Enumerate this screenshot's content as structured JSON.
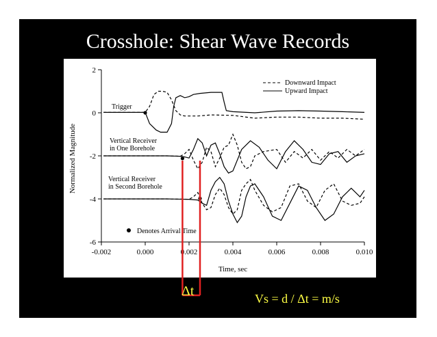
{
  "slide": {
    "title": "Crosshole: Shear Wave Records",
    "delta_t_label": "Δt",
    "formula": "Vs = d / Δt = m/s",
    "accent": "#ffff44",
    "marker_color": "#e02020"
  },
  "chart_data": {
    "type": "line",
    "xlabel": "Time, sec",
    "ylabel": "Normalized Magnitude",
    "xlim": [
      -0.002,
      0.01
    ],
    "ylim": [
      -6,
      2
    ],
    "x_ticks": [
      "-0.002",
      "0.000",
      "0.002",
      "0.004",
      "0.006",
      "0.008",
      "0.010"
    ],
    "y_ticks": [
      "2",
      "0",
      "-2",
      "-4",
      "-6"
    ],
    "legend": {
      "position": "top-right",
      "entries": [
        "Downward Impact",
        "Upward Impact"
      ]
    },
    "annotations": {
      "trigger": "Trigger",
      "receiver1": [
        "Vertical Receiver",
        "in One Borehole"
      ],
      "receiver2": [
        "Vertical Receiver",
        "in Second Borehole"
      ],
      "arrival_note": "Denotes Arrival Time"
    },
    "arrival_points": [
      {
        "x": 0.0,
        "y": 0.0
      },
      {
        "x": 0.0017,
        "y": -2.12
      },
      {
        "x": 0.0025,
        "y": -3.98
      }
    ],
    "delta_t_markers": [
      0.0017,
      0.0025
    ],
    "series": [
      {
        "name": "Downward Impact",
        "style": "dashed",
        "group": "trigger",
        "x": [
          -0.0019,
          0,
          0.0002,
          0.0004,
          0.0006,
          0.0008,
          0.001,
          0.0012,
          0.0014,
          0.0016,
          0.0018,
          0.002,
          0.0024,
          0.003,
          0.004,
          0.005,
          0.006,
          0.007,
          0.008,
          0.009,
          0.01
        ],
        "y": [
          0.02,
          0.02,
          0.3,
          0.85,
          1.0,
          1.0,
          0.95,
          0.6,
          0.1,
          -0.1,
          -0.15,
          -0.15,
          -0.15,
          -0.1,
          -0.12,
          -0.25,
          -0.2,
          -0.2,
          -0.25,
          -0.25,
          -0.3
        ]
      },
      {
        "name": "Upward Impact",
        "style": "solid",
        "group": "trigger",
        "x": [
          -0.0019,
          0,
          0.0002,
          0.0005,
          0.0007,
          0.001,
          0.0012,
          0.0013,
          0.0014,
          0.0016,
          0.0018,
          0.002,
          0.0022,
          0.0025,
          0.003,
          0.0035,
          0.0036,
          0.0037,
          0.004,
          0.005,
          0.006,
          0.007,
          0.008,
          0.009,
          0.01
        ],
        "y": [
          0.02,
          0.02,
          -0.5,
          -0.8,
          -0.9,
          -0.9,
          -0.5,
          0.3,
          0.7,
          0.8,
          0.7,
          0.75,
          0.85,
          0.9,
          0.95,
          0.95,
          0.5,
          0.1,
          0.05,
          0.0,
          0.08,
          0.1,
          0.08,
          0.05,
          0.02
        ]
      },
      {
        "name": "Downward Impact",
        "style": "dashed",
        "group": "receiver1",
        "x": [
          -0.0019,
          0,
          0.001,
          0.0016,
          0.0018,
          0.002,
          0.0022,
          0.0024,
          0.0026,
          0.0028,
          0.003,
          0.0032,
          0.0034,
          0.0036,
          0.0038,
          0.004,
          0.0042,
          0.0044,
          0.0046,
          0.0048,
          0.005,
          0.0054,
          0.006,
          0.0064,
          0.0068,
          0.0072,
          0.0076,
          0.008,
          0.0084,
          0.0088,
          0.0092,
          0.0096,
          0.01
        ],
        "y": [
          -2.0,
          -2.0,
          -2.0,
          -2.02,
          -1.9,
          -1.7,
          -2.2,
          -2.6,
          -2.3,
          -1.6,
          -1.8,
          -2.5,
          -2.1,
          -1.6,
          -1.5,
          -1.0,
          -1.5,
          -2.3,
          -2.6,
          -2.5,
          -2.0,
          -1.8,
          -1.7,
          -2.3,
          -1.8,
          -2.1,
          -1.7,
          -2.2,
          -1.8,
          -2.1,
          -1.7,
          -2.0,
          -1.7
        ]
      },
      {
        "name": "Upward Impact",
        "style": "solid",
        "group": "receiver1",
        "x": [
          -0.0019,
          0,
          0.001,
          0.0016,
          0.0018,
          0.002,
          0.0022,
          0.0024,
          0.0026,
          0.0028,
          0.003,
          0.0032,
          0.0034,
          0.0036,
          0.0038,
          0.004,
          0.0044,
          0.0048,
          0.0052,
          0.0056,
          0.006,
          0.0064,
          0.0068,
          0.0072,
          0.0076,
          0.008,
          0.0084,
          0.0088,
          0.0092,
          0.0096,
          0.01
        ],
        "y": [
          -2.0,
          -2.0,
          -2.0,
          -2.02,
          -2.05,
          -2.1,
          -1.7,
          -1.2,
          -1.4,
          -2.0,
          -1.5,
          -1.4,
          -1.9,
          -2.5,
          -2.8,
          -2.7,
          -1.7,
          -1.3,
          -1.6,
          -2.2,
          -2.6,
          -1.8,
          -1.3,
          -1.7,
          -2.3,
          -2.4,
          -1.9,
          -1.8,
          -2.3,
          -2.0,
          -1.9
        ]
      },
      {
        "name": "Downward Impact",
        "style": "dashed",
        "group": "receiver2",
        "x": [
          -0.0019,
          0,
          0.001,
          0.002,
          0.0022,
          0.0024,
          0.0026,
          0.0028,
          0.003,
          0.0032,
          0.0034,
          0.0036,
          0.0038,
          0.004,
          0.0042,
          0.0044,
          0.0046,
          0.0048,
          0.005,
          0.0054,
          0.0058,
          0.0062,
          0.0066,
          0.007,
          0.0074,
          0.0078,
          0.0082,
          0.0086,
          0.009,
          0.0094,
          0.0098,
          0.01
        ],
        "y": [
          -4.0,
          -4.0,
          -4.0,
          -4.02,
          -3.9,
          -3.7,
          -4.2,
          -4.5,
          -4.4,
          -3.8,
          -3.5,
          -3.8,
          -4.4,
          -4.7,
          -4.5,
          -3.6,
          -3.3,
          -3.1,
          -3.6,
          -4.3,
          -4.6,
          -4.4,
          -3.4,
          -3.3,
          -4.1,
          -4.4,
          -3.6,
          -3.3,
          -4.1,
          -4.3,
          -4.2,
          -3.9
        ]
      },
      {
        "name": "Upward Impact",
        "style": "solid",
        "group": "receiver2",
        "x": [
          -0.0019,
          0,
          0.001,
          0.002,
          0.0024,
          0.0026,
          0.0028,
          0.003,
          0.0032,
          0.0034,
          0.0036,
          0.0038,
          0.004,
          0.0042,
          0.0044,
          0.0046,
          0.0048,
          0.005,
          0.0054,
          0.0058,
          0.0062,
          0.0066,
          0.007,
          0.0074,
          0.0078,
          0.0082,
          0.0086,
          0.009,
          0.0094,
          0.0098,
          0.01
        ],
        "y": [
          -4.0,
          -4.0,
          -4.0,
          -4.02,
          -4.05,
          -4.2,
          -4.3,
          -3.6,
          -3.2,
          -3.0,
          -3.3,
          -4.1,
          -4.7,
          -5.1,
          -4.8,
          -3.9,
          -3.4,
          -3.3,
          -3.9,
          -4.8,
          -5.0,
          -4.2,
          -3.4,
          -3.6,
          -4.4,
          -5.0,
          -4.7,
          -3.9,
          -3.5,
          -3.9,
          -3.6
        ]
      }
    ]
  }
}
